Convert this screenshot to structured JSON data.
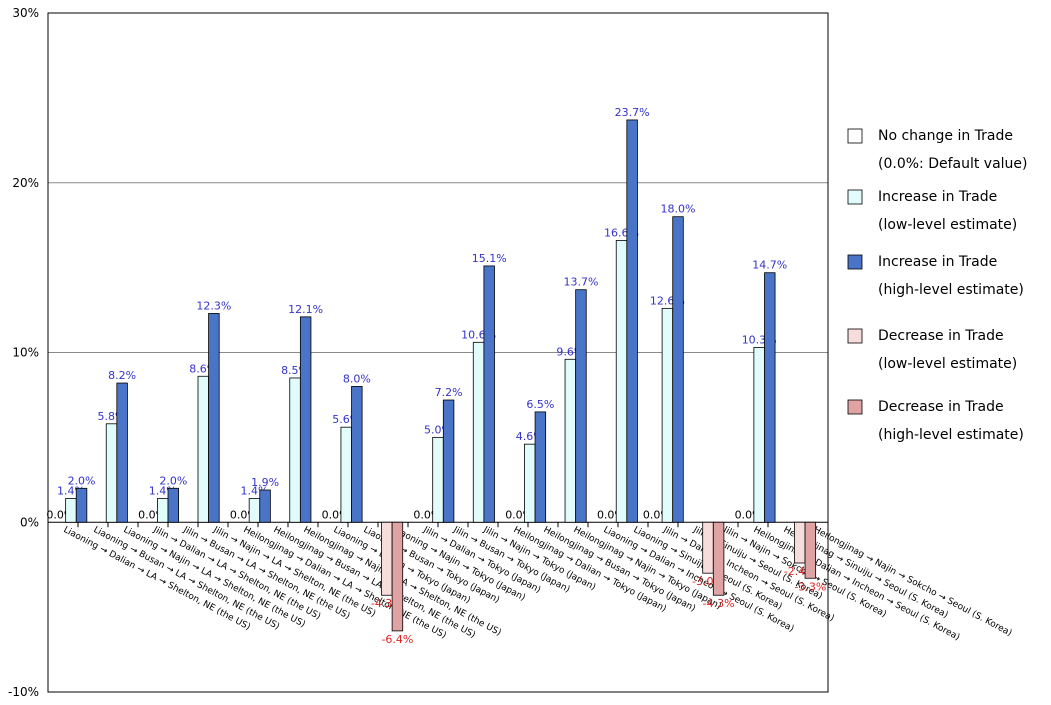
{
  "chart_data": {
    "type": "bar",
    "ylim": [
      -10,
      30
    ],
    "y_ticks": [
      "-10%",
      "0%",
      "10%",
      "20%",
      "30%"
    ],
    "gridlines": "horizontal",
    "legend_position": "right",
    "colors": {
      "no_change": "#ffffff",
      "increase_low": "#e2fcfc",
      "increase_high": "#4a74c8",
      "decrease_low": "#f7dcdc",
      "decrease_high": "#dfa3a3",
      "positive_label": "#3333cc",
      "negative_label": "#e02020"
    },
    "categories": [
      "Liaoning → Dalian → LA → Shelton, NE (the US)",
      "Liaoning → Busan → LA → Shelton, NE (the US)",
      "Liaoning → Najin → LA → Shelton, NE (the US)",
      "Jilin → Dalian → LA → Shelton, NE (the US)",
      "Jilin → Busan → LA → Shelton, NE (the US)",
      "Jilin → Najin → LA → Shelton, NE (the US)",
      "Heilongjinag → Dalian → LA → Shelton, NE (the US)",
      "Heilongjinag → Busan → LA → Shelton, NE (the US)",
      "Heilongjinag → Najin → LA → Shelton, NE (the US)",
      "Liaoning → Dalian → Tokyo (Japan)",
      "Liaoning → Busan → Tokyo (Japan)",
      "Liaoning → Najin → Tokyo (Japan)",
      "Jilin → Dalian → Tokyo (Japan)",
      "Jilin → Busan → Tokyo (Japan)",
      "Jilin → Najin → Tokyo (Japan)",
      "Heilongjinag → Dalian → Tokyo (Japan)",
      "Heilongjinag → Busan → Tokyo (Japan)",
      "Heilongjinag → Najin → Tokyo (Japan)",
      "Liaoning → Dalian → Incheon → Seoul (S. Korea)",
      "Liaoning → Sinuiju → Seoul (S. Korea)",
      "Jilin → Dalian → Incheon → Seoul (S. Korea)",
      "Jilin → Sinuiju → Seoul (S. Korea)",
      "Jilin → Najin → Sokcho → Seoul (S. Korea)",
      "Heilongjinag → Dalian → Incheon → Seoul (S. Korea)",
      "Heilongjinag → Sinuiju → Seoul (S. Korea)",
      "Heilongjinag → Najin → Sokcho → Seoul (S. Korea)"
    ],
    "groups": [
      {
        "values": [
          0.0,
          1.4,
          2.0
        ],
        "labels": [
          "0.0%",
          "1.4%",
          "2.0%"
        ],
        "kinds": [
          "none",
          "inc_low",
          "inc_high"
        ]
      },
      {
        "values": [
          5.8,
          8.2
        ],
        "labels": [
          "5.8%",
          "8.2%"
        ],
        "kinds": [
          "inc_low",
          "inc_high"
        ]
      },
      {
        "values": [
          0.0,
          1.4,
          2.0
        ],
        "labels": [
          "0.0%",
          "1.4%",
          "2.0%"
        ],
        "kinds": [
          "none",
          "inc_low",
          "inc_high"
        ]
      },
      {
        "values": [
          8.6,
          12.3
        ],
        "labels": [
          "8.6%",
          "12.3%"
        ],
        "kinds": [
          "inc_low",
          "inc_high"
        ]
      },
      {
        "values": [
          0.0,
          1.4,
          1.9
        ],
        "labels": [
          "0.0%",
          "1.4%",
          "1.9%"
        ],
        "kinds": [
          "none",
          "inc_low",
          "inc_high"
        ]
      },
      {
        "values": [
          8.5,
          12.1
        ],
        "labels": [
          "8.5%",
          "12.1%"
        ],
        "kinds": [
          "inc_low",
          "inc_high"
        ]
      },
      {
        "values": [
          0.0,
          5.6,
          8.0
        ],
        "labels": [
          "0.0%",
          "5.6%",
          "8.0%"
        ],
        "kinds": [
          "none",
          "inc_low",
          "inc_high"
        ]
      },
      {
        "values": [
          -4.3,
          -6.4
        ],
        "labels": [
          "-4.3%",
          "-6.4%"
        ],
        "kinds": [
          "dec_low",
          "dec_high"
        ]
      },
      {
        "values": [
          0.0,
          5.0,
          7.2
        ],
        "labels": [
          "0.0%",
          "5.0%",
          "7.2%"
        ],
        "kinds": [
          "none",
          "inc_low",
          "inc_high"
        ]
      },
      {
        "values": [
          10.6,
          15.1
        ],
        "labels": [
          "10.6%",
          "15.1%"
        ],
        "kinds": [
          "inc_low",
          "inc_high"
        ]
      },
      {
        "values": [
          0.0,
          4.6,
          6.5
        ],
        "labels": [
          "0.0%",
          "4.6%",
          "6.5%"
        ],
        "kinds": [
          "none",
          "inc_low",
          "inc_high"
        ]
      },
      {
        "values": [
          9.6,
          13.7
        ],
        "labels": [
          "9.6%",
          "13.7%"
        ],
        "kinds": [
          "inc_low",
          "inc_high"
        ]
      },
      {
        "values": [
          0.0,
          16.6,
          23.7
        ],
        "labels": [
          "0.0%",
          "16.6%",
          "23.7%"
        ],
        "kinds": [
          "none",
          "inc_low",
          "inc_high"
        ]
      },
      {
        "values": [
          0.0,
          12.6,
          18.0
        ],
        "labels": [
          "0.0%",
          "12.6%",
          "18.0%"
        ],
        "kinds": [
          "none",
          "inc_low",
          "inc_high"
        ]
      },
      {
        "values": [
          -3.0,
          -4.3
        ],
        "labels": [
          "-3.0%",
          "-4.3%"
        ],
        "kinds": [
          "dec_low",
          "dec_high"
        ]
      },
      {
        "values": [
          0.0,
          10.3,
          14.7
        ],
        "labels": [
          "0.0%",
          "10.3%",
          "14.7%"
        ],
        "kinds": [
          "none",
          "inc_low",
          "inc_high"
        ]
      },
      {
        "values": [
          -2.4,
          -3.3
        ],
        "labels": [
          "-2.4%",
          "-3.3%"
        ],
        "kinds": [
          "dec_low",
          "dec_high"
        ]
      }
    ],
    "legend": [
      {
        "kind": "none",
        "line1": "No change in Trade",
        "line2": "(0.0%: Default value)"
      },
      {
        "kind": "inc_low",
        "line1": "Increase in Trade",
        "line2": "(low-level estimate)"
      },
      {
        "kind": "inc_high",
        "line1": "Increase in Trade",
        "line2": "(high-level estimate)"
      },
      {
        "kind": "dec_low",
        "line1": "Decrease in Trade",
        "line2": "(low-level estimate)"
      },
      {
        "kind": "dec_high",
        "line1": "Decrease in Trade",
        "line2": "(high-level estimate)"
      }
    ]
  }
}
